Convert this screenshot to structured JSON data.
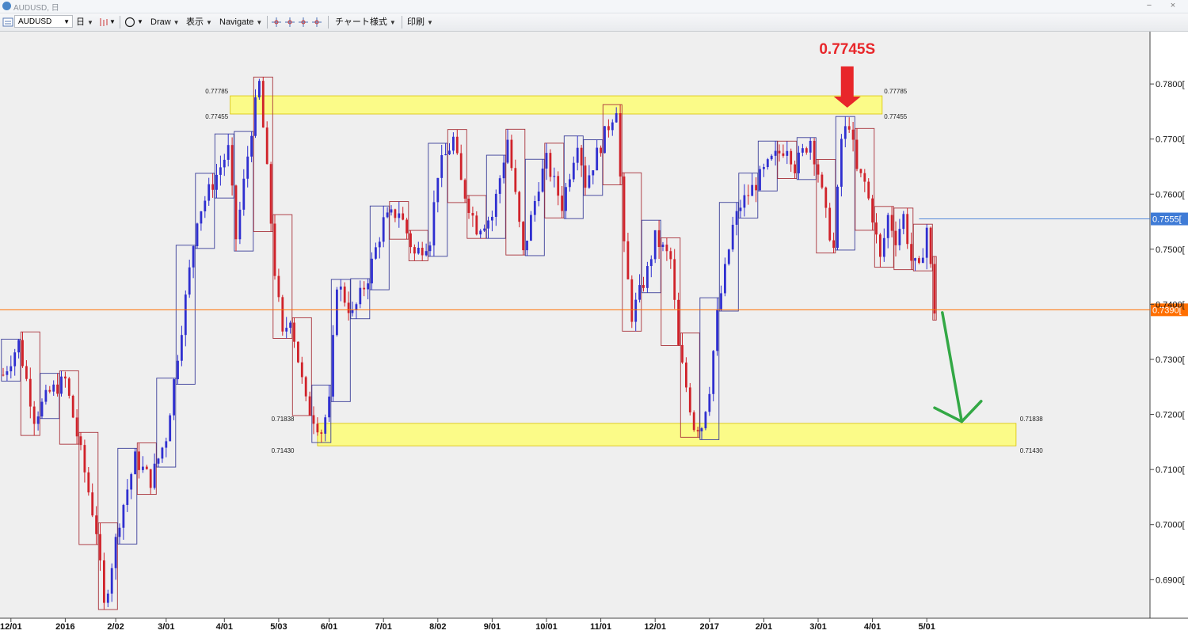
{
  "window": {
    "title": "AUDUSD, 日",
    "minimize_glyph": "−",
    "close_glyph": "×"
  },
  "toolbar": {
    "symbol": "AUDUSD",
    "timeframe": "日",
    "draw": "Draw",
    "view": "表示",
    "navigate": "Navigate",
    "chart_style": "チャート様式",
    "print": "印刷",
    "icons": [
      "chart-window-icon",
      "bar-chart-icon",
      "circle-tool-icon",
      "crosshair-icon",
      "crosshair-icon",
      "crosshair-icon",
      "crosshair-icon"
    ]
  },
  "annotations": {
    "headline": "0.7745S",
    "headline_color": "#e8262a",
    "zone_color": "#ffff66",
    "top_zone": {
      "upper": "0.77785",
      "lower": "0.77455"
    },
    "bottom_zone": {
      "upper": "0.71838",
      "lower": "0.71430"
    },
    "down_arrow_color": "#33a845"
  },
  "chart_data": {
    "type": "candlestick",
    "symbol": "AUDUSD",
    "timeframe": "daily",
    "ylim": [
      0.683,
      0.7895
    ],
    "y_ticks": [
      "0.7800[",
      "0.7700[",
      "0.7600[",
      "0.7500[",
      "0.7400[",
      "0.7300[",
      "0.7200[",
      "0.7100[",
      "0.7000[",
      "0.6900["
    ],
    "y_tick_values": [
      0.78,
      0.77,
      0.76,
      0.75,
      0.74,
      0.73,
      0.72,
      0.71,
      0.7,
      0.69
    ],
    "x_ticks": [
      "12/01",
      "2016",
      "2/02",
      "3/01",
      "4/01",
      "5/03",
      "6/01",
      "7/01",
      "8/02",
      "9/01",
      "10/01",
      "11/01",
      "12/01",
      "2017",
      "2/01",
      "3/01",
      "4/01",
      "5/01"
    ],
    "x_tick_index": [
      2,
      16,
      29,
      42,
      57,
      71,
      84,
      98,
      112,
      126,
      140,
      154,
      168,
      182,
      196,
      210,
      224,
      238
    ],
    "price_labels": [
      {
        "text": "0.7555[",
        "value": 0.7555,
        "color": "#3f7bd6"
      },
      {
        "text": "0.7390[",
        "value": 0.739,
        "color": "#ff6f00"
      }
    ],
    "close_points": [
      [
        0,
        0.7272
      ],
      [
        4,
        0.733
      ],
      [
        8,
        0.7195
      ],
      [
        12,
        0.724
      ],
      [
        16,
        0.7262
      ],
      [
        20,
        0.713
      ],
      [
        24,
        0.699
      ],
      [
        26,
        0.685
      ],
      [
        30,
        0.701
      ],
      [
        34,
        0.712
      ],
      [
        38,
        0.708
      ],
      [
        42,
        0.716
      ],
      [
        46,
        0.736
      ],
      [
        50,
        0.756
      ],
      [
        54,
        0.762
      ],
      [
        58,
        0.768
      ],
      [
        60,
        0.752
      ],
      [
        64,
        0.772
      ],
      [
        66,
        0.78
      ],
      [
        68,
        0.764
      ],
      [
        70,
        0.746
      ],
      [
        72,
        0.734
      ],
      [
        74,
        0.738
      ],
      [
        78,
        0.722
      ],
      [
        82,
        0.717
      ],
      [
        84,
        0.722
      ],
      [
        86,
        0.744
      ],
      [
        90,
        0.738
      ],
      [
        94,
        0.745
      ],
      [
        98,
        0.755
      ],
      [
        102,
        0.757
      ],
      [
        106,
        0.749
      ],
      [
        110,
        0.752
      ],
      [
        112,
        0.764
      ],
      [
        116,
        0.77
      ],
      [
        118,
        0.762
      ],
      [
        122,
        0.754
      ],
      [
        126,
        0.756
      ],
      [
        130,
        0.77
      ],
      [
        134,
        0.749
      ],
      [
        138,
        0.762
      ],
      [
        140,
        0.766
      ],
      [
        144,
        0.758
      ],
      [
        148,
        0.77
      ],
      [
        150,
        0.762
      ],
      [
        154,
        0.769
      ],
      [
        158,
        0.776
      ],
      [
        160,
        0.75
      ],
      [
        162,
        0.738
      ],
      [
        166,
        0.746
      ],
      [
        168,
        0.752
      ],
      [
        172,
        0.748
      ],
      [
        174,
        0.732
      ],
      [
        178,
        0.718
      ],
      [
        180,
        0.718
      ],
      [
        182,
        0.725
      ],
      [
        184,
        0.738
      ],
      [
        188,
        0.754
      ],
      [
        190,
        0.758
      ],
      [
        194,
        0.762
      ],
      [
        198,
        0.766
      ],
      [
        202,
        0.769
      ],
      [
        204,
        0.765
      ],
      [
        208,
        0.77
      ],
      [
        210,
        0.764
      ],
      [
        212,
        0.756
      ],
      [
        214,
        0.75
      ],
      [
        216,
        0.77
      ],
      [
        218,
        0.773
      ],
      [
        220,
        0.764
      ],
      [
        222,
        0.762
      ],
      [
        224,
        0.756
      ],
      [
        226,
        0.748
      ],
      [
        228,
        0.756
      ],
      [
        230,
        0.752
      ],
      [
        232,
        0.756
      ],
      [
        234,
        0.748
      ],
      [
        236,
        0.746
      ],
      [
        238,
        0.754
      ],
      [
        240,
        0.739
      ]
    ]
  }
}
